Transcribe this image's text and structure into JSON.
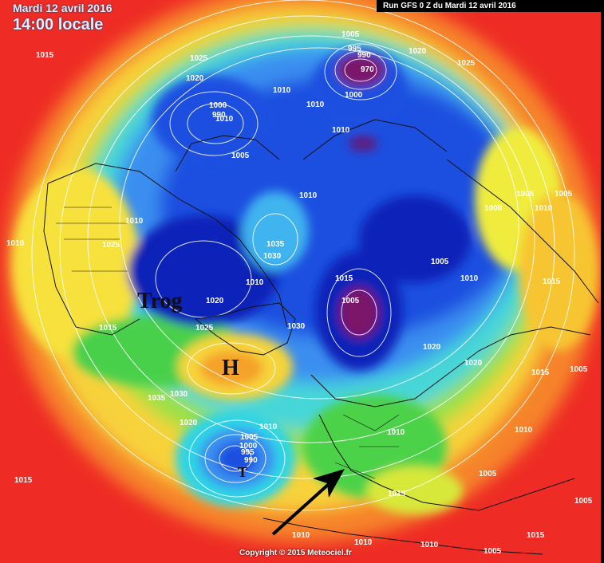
{
  "header": {
    "date": "Mardi 12 avril 2016",
    "time": "14:00 locale",
    "run": "Run GFS 0 Z du Mardi 12 avril 2016"
  },
  "copyright": "Copyright © 2015 Meteociel.fr",
  "annotations": {
    "trough": "Trog",
    "high": "H",
    "low": "T"
  },
  "isobar_labels": [
    "1015",
    "1025",
    "1020",
    "1005",
    "995",
    "990",
    "970",
    "1000",
    "1010",
    "1020",
    "1025",
    "1000",
    "990",
    "1010",
    "1010",
    "1005",
    "1010",
    "1010",
    "1010",
    "1000",
    "1005",
    "1005",
    "1010",
    "1010",
    "1025",
    "1035",
    "1030",
    "1010",
    "1015",
    "1005",
    "1005",
    "1010",
    "1015",
    "1020",
    "1025",
    "1015",
    "1030",
    "1020",
    "1020",
    "1015",
    "1005",
    "1035",
    "1030",
    "1020",
    "1010",
    "1005",
    "1000",
    "995",
    "990",
    "1010",
    "1010",
    "1005",
    "1015",
    "1015",
    "1010",
    "1010",
    "1010",
    "1005",
    "1015",
    "1005"
  ],
  "colors": {
    "very_low": "#7b1468",
    "deep_blue": "#0a1fb4",
    "blue": "#1e50e0",
    "light_blue": "#3c9cf0",
    "cyan": "#50e0f0",
    "green": "#4cd24a",
    "yellow": "#f6f03c",
    "orange": "#f8a02a",
    "red": "#ee2c25"
  }
}
